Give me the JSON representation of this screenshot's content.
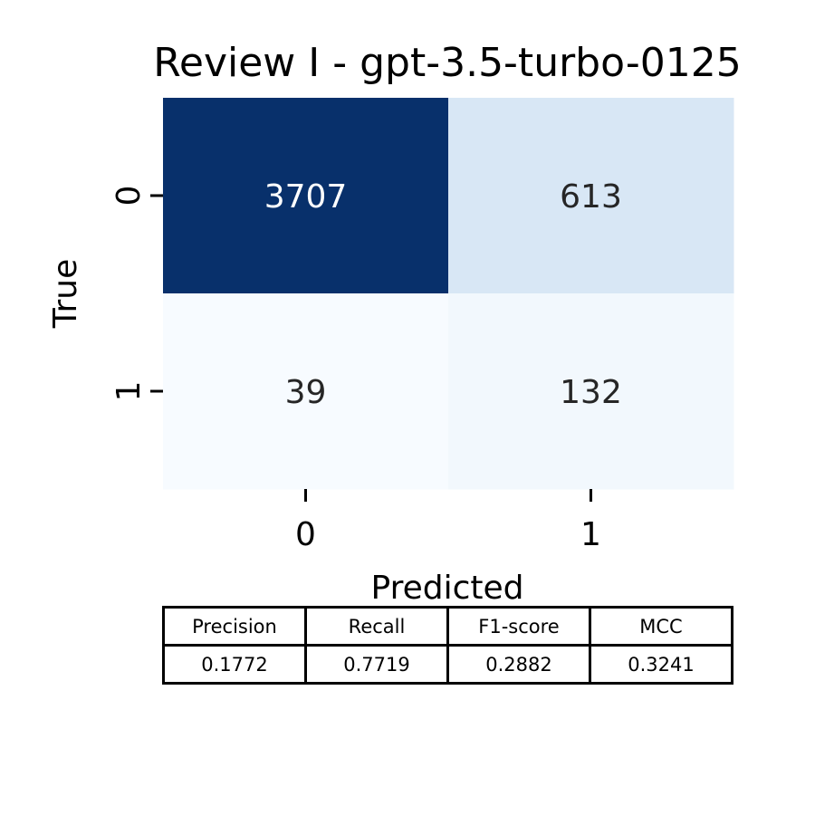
{
  "chart_data": {
    "type": "heatmap",
    "title": "Review I - gpt-3.5-turbo-0125",
    "xlabel": "Predicted",
    "ylabel": "True",
    "x_categories": [
      "0",
      "1"
    ],
    "y_categories": [
      "0",
      "1"
    ],
    "matrix": [
      [
        3707,
        613
      ],
      [
        39,
        132
      ]
    ],
    "colormap": [
      "#f7fbff",
      "#08306b"
    ],
    "colorbar": false
  },
  "metrics": {
    "headers": [
      "Precision",
      "Recall",
      "F1-score",
      "MCC"
    ],
    "values": [
      "0.1772",
      "0.7719",
      "0.2882",
      "0.3241"
    ]
  }
}
